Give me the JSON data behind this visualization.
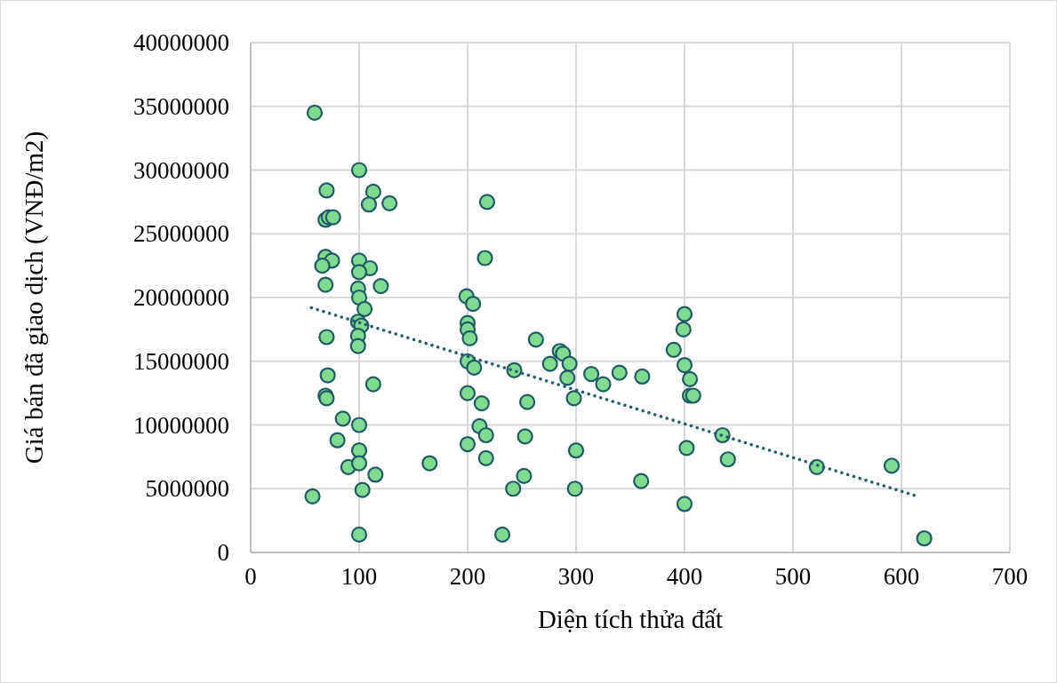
{
  "chart_data": {
    "type": "scatter",
    "xlabel": "Diện tích thửa đất",
    "ylabel": "Giá bán đã giao dịch (VNĐ/m2)",
    "xlim": [
      0,
      700
    ],
    "xticks": [
      0,
      100,
      200,
      300,
      400,
      500,
      600,
      700
    ],
    "ylim": [
      0,
      40000000
    ],
    "yticks": [
      0,
      5000000,
      10000000,
      15000000,
      20000000,
      25000000,
      30000000,
      35000000,
      40000000
    ],
    "grid": true,
    "series": [
      {
        "color": "#7fdb8f",
        "marker": "circle",
        "x": [
          59,
          100,
          70,
          113,
          109,
          128,
          69,
          72,
          76,
          69,
          75,
          66,
          100,
          110,
          100,
          69,
          120,
          99,
          100,
          105,
          99,
          102,
          99,
          70,
          99,
          71,
          113,
          69,
          70,
          85,
          100,
          80,
          100,
          90,
          100,
          115,
          103,
          57,
          100,
          165,
          218,
          216,
          199,
          205,
          200,
          200,
          202,
          200,
          206,
          200,
          213,
          211,
          217,
          200,
          217,
          263,
          243,
          255,
          253,
          252,
          242,
          232,
          276,
          285,
          288,
          294,
          292,
          298,
          300,
          299,
          314,
          325,
          340,
          361,
          360,
          390,
          400,
          399,
          400,
          405,
          405,
          408,
          402,
          400,
          435,
          440,
          522,
          591,
          621
        ],
        "values": [
          34500000,
          30000000,
          28400000,
          28300000,
          27300000,
          27400000,
          26100000,
          26300000,
          26300000,
          23200000,
          22900000,
          22500000,
          22900000,
          22300000,
          22000000,
          21000000,
          20900000,
          20700000,
          20000000,
          19100000,
          18100000,
          17800000,
          17000000,
          16900000,
          16200000,
          13900000,
          13200000,
          12300000,
          12100000,
          10500000,
          10000000,
          8800000,
          8000000,
          6700000,
          7000000,
          6100000,
          4900000,
          4400000,
          1400000,
          7000000,
          27500000,
          23100000,
          20100000,
          19500000,
          18000000,
          17500000,
          16800000,
          15000000,
          14500000,
          12500000,
          11700000,
          9900000,
          9200000,
          8500000,
          7400000,
          16700000,
          14300000,
          11800000,
          9100000,
          6000000,
          5000000,
          1400000,
          14800000,
          15800000,
          15600000,
          14800000,
          13700000,
          12100000,
          8000000,
          5000000,
          14000000,
          13200000,
          14100000,
          13800000,
          5600000,
          15900000,
          18700000,
          17500000,
          14700000,
          13600000,
          12300000,
          12300000,
          8200000,
          3800000,
          9200000,
          7300000,
          6700000,
          6800000,
          1100000
        ]
      },
      {
        "type": "line",
        "color": "#215f6e",
        "line_style": "dotted",
        "marker": "none",
        "x": [
          56,
          615
        ],
        "values": [
          19200000,
          4400000
        ]
      }
    ]
  }
}
